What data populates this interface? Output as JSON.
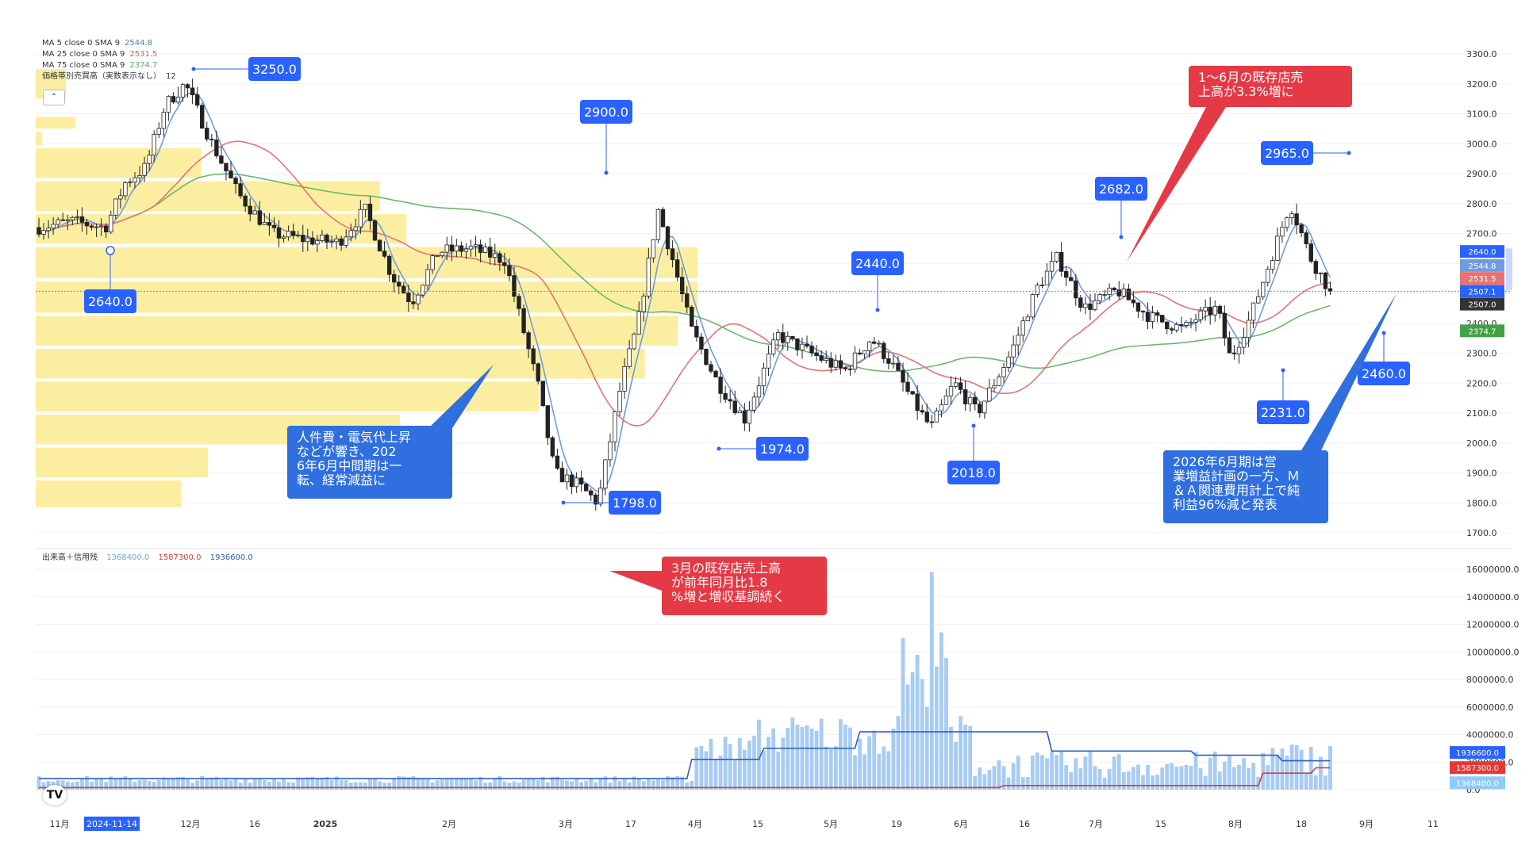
{
  "indicators": {
    "ma5": {
      "label": "MA 5 close 0 SMA 9",
      "value": "2544.8"
    },
    "ma25": {
      "label": "MA 25 close 0 SMA 9",
      "value": "2531.5"
    },
    "ma75": {
      "label": "MA 75 close 0 SMA 9",
      "value": "2374.7"
    },
    "vp_label": "価格帯別売買高（実数表示なし）",
    "vp_value": "12"
  },
  "volume_legend": {
    "label": "出来高＋信用残",
    "v1": "1368400.0",
    "v2": "1587300.0",
    "v3": "1936600.0"
  },
  "collapse_glyph": "⌃",
  "logo_text": "TV",
  "chart_data": {
    "type": "candlestick",
    "price_axis": {
      "range": [
        1700,
        3300
      ],
      "ticks": [
        "3300.0",
        "3200.0",
        "3100.0",
        "3000.0",
        "2900.0",
        "2800.0",
        "2700.0",
        "2600.0",
        "2500.0",
        "2400.0",
        "2300.0",
        "2200.0",
        "2100.0",
        "2000.0",
        "1900.0",
        "1800.0",
        "1700.0"
      ]
    },
    "volume_axis": {
      "range": [
        0,
        16000000
      ],
      "ticks": [
        "16000000.0",
        "14000000.0",
        "12000000.0",
        "10000000.0",
        "8000000.0",
        "6000000.0",
        "4000000.0",
        "2000000.0",
        "0.0"
      ]
    },
    "x_labels": [
      "11月",
      "2024-11-14",
      "12月",
      "16",
      "2025",
      "2月",
      "3月",
      "17",
      "4月",
      "15",
      "5月",
      "19",
      "6月",
      "16",
      "7月",
      "15",
      "8月",
      "18",
      "9月",
      "11"
    ],
    "highlighted_x_label": "2024-11-14",
    "last_close": 2507.0,
    "price_tags": [
      {
        "text": "2640.0",
        "color": "#2962ff"
      },
      {
        "text": "2544.8",
        "color": "#6f9be0"
      },
      {
        "text": "2531.5",
        "color": "#e57373"
      },
      {
        "text": "2507.1",
        "color": "#2962ff"
      },
      {
        "text": "2507.0",
        "color": "#333333"
      },
      {
        "text": "2374.7",
        "color": "#43a047"
      }
    ],
    "volume_tags": [
      {
        "text": "1936600.0",
        "color": "#2962ff"
      },
      {
        "text": "1587300.0",
        "color": "#e53935"
      },
      {
        "text": "1368400.0",
        "color": "#90caf9"
      }
    ],
    "price_labels": [
      {
        "text": "3250.0",
        "value": 3250
      },
      {
        "text": "2640.0",
        "value": 2640
      },
      {
        "text": "2900.0",
        "value": 2900
      },
      {
        "text": "2682.0",
        "value": 2682
      },
      {
        "text": "2440.0",
        "value": 2440
      },
      {
        "text": "1974.0",
        "value": 1974
      },
      {
        "text": "2018.0",
        "value": 2018
      },
      {
        "text": "1798.0",
        "value": 1798
      },
      {
        "text": "2965.0",
        "value": 2965
      },
      {
        "text": "2231.0",
        "value": 2231
      },
      {
        "text": "2460.0",
        "value": 2460
      }
    ],
    "annotations": [
      {
        "text": "1〜6月の既存店売上高が3.3%増に",
        "color": "#e53945"
      },
      {
        "text": "人件費・電気代上昇などが響き、2026年6月中間期は一転、経常減益に",
        "color": "#2f6fe0"
      },
      {
        "text": "2026年6月期は営業増益計画の一方、Ｍ＆Ａ関連費用計上で純利益96%減と発表",
        "color": "#2f6fe0"
      },
      {
        "text": "3月の既存店売上高が前年同月比1.8%増と増収基調続く",
        "color": "#e53945"
      }
    ],
    "series_colors": {
      "up": "#ffffff",
      "down": "#222222",
      "ma5": "#6f9be0",
      "ma25": "#e57373",
      "ma75": "#6ab96a",
      "volume": "#a8cbf2",
      "credit_buy": "#2f5fb8",
      "credit_sell": "#d04040",
      "volume_profile": "#fbeea0"
    }
  }
}
